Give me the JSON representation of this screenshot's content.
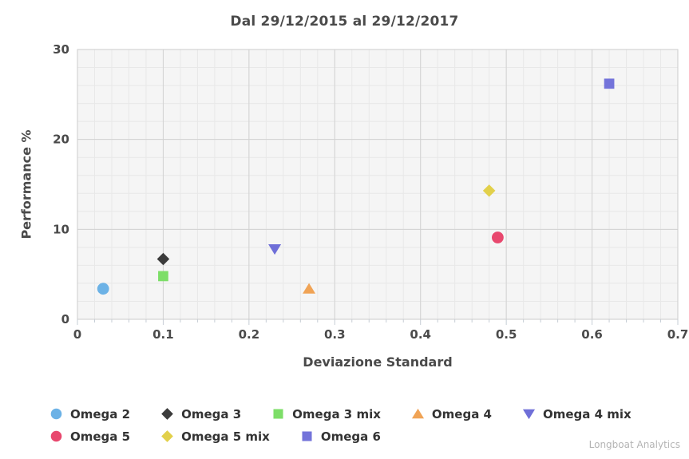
{
  "title": "Dal 29/12/2015 al 29/12/2017",
  "watermark": "Longboat Analytics",
  "chart_data": {
    "type": "scatter",
    "title": "Dal 29/12/2015 al 29/12/2017",
    "xlabel": "Deviazione Standard",
    "ylabel": "Performance %",
    "xlim": [
      0,
      0.7
    ],
    "ylim": [
      0,
      30
    ],
    "x_major_step": 0.1,
    "x_minor_step": 0.02,
    "y_major_step": 10,
    "y_minor_step": 2,
    "x_tick_labels": [
      "0",
      "0.1",
      "0.2",
      "0.3",
      "0.4",
      "0.5",
      "0.6",
      "0.7"
    ],
    "y_tick_labels": [
      "0",
      "10",
      "20",
      "30"
    ],
    "grid": true,
    "legend_position": "bottom",
    "series": [
      {
        "name": "Omega 2",
        "marker": "circle",
        "color": "#6cb2e6",
        "x": 0.03,
        "y": 3.4
      },
      {
        "name": "Omega 3",
        "marker": "diamond",
        "color": "#3b3b3b",
        "x": 0.1,
        "y": 6.7
      },
      {
        "name": "Omega 3 mix",
        "marker": "square",
        "color": "#7dde68",
        "x": 0.1,
        "y": 4.8
      },
      {
        "name": "Omega 4",
        "marker": "triangle-up",
        "color": "#f0a355",
        "x": 0.27,
        "y": 3.4
      },
      {
        "name": "Omega 4 mix",
        "marker": "triangle-down",
        "color": "#6f6fd8",
        "x": 0.23,
        "y": 7.8
      },
      {
        "name": "Omega 5",
        "marker": "circle",
        "color": "#e8486e",
        "x": 0.49,
        "y": 9.1
      },
      {
        "name": "Omega 5 mix",
        "marker": "diamond",
        "color": "#e2d04a",
        "x": 0.48,
        "y": 14.3
      },
      {
        "name": "Omega 6",
        "marker": "square",
        "color": "#7373da",
        "x": 0.62,
        "y": 26.2
      }
    ],
    "style": {
      "plot_bg": "#f5f5f5",
      "minor_grid": "#e8e8e8",
      "major_grid": "#d2d2d2",
      "border": "#cccccc",
      "tick": "#c6cdd5",
      "tick_label": "#4a4a4a"
    }
  }
}
